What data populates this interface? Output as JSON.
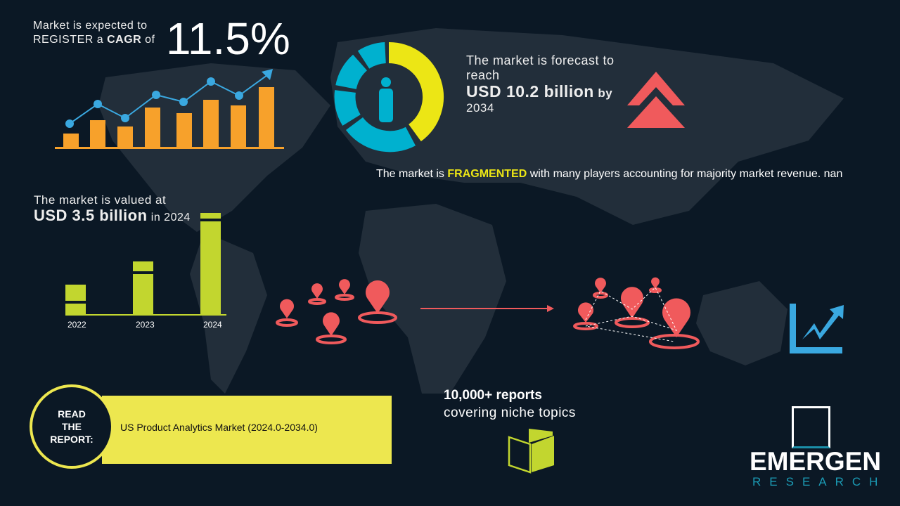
{
  "cagr": {
    "line1": "Market is expected to",
    "line2_pre": "REGISTER a ",
    "line2_bold": "CAGR",
    "line2_post": " of",
    "value": "11.5%"
  },
  "forecast": {
    "line1": "The market is forecast to",
    "line2": "reach",
    "value": "USD 10.2 billion",
    "by": "by",
    "year": "2034"
  },
  "fragmented": {
    "pre": "The market is ",
    "highlight": "FRAGMENTED",
    "post": " with many players accounting for majority market revenue. nan"
  },
  "valued": {
    "line1": "The market is valued at",
    "value": "USD 3.5 billion",
    "suffix": "in 2024"
  },
  "value_bars": {
    "categories": [
      "2022",
      "2023",
      "2024"
    ]
  },
  "reports": {
    "line1": "10,000+ reports",
    "line2": "covering niche topics"
  },
  "read_report": {
    "circle_label": "READ THE REPORT:",
    "title": "US Product Analytics Market (2024.0-2034.0)"
  },
  "logo": {
    "name": "EMERGEN",
    "sub": "RESEARCH"
  },
  "colors": {
    "background": "#0b1825",
    "orange": "#f7a12b",
    "blue": "#3aa8e0",
    "cyan": "#00b1cf",
    "yellow": "#ece615",
    "green": "#c2d62f",
    "red": "#f05a5c"
  },
  "icons": [
    "bar-line-growth-icon",
    "donut-person-icon",
    "double-chevron-up-icon",
    "location-pin-icon",
    "growth-chart-icon",
    "open-book-icon"
  ]
}
